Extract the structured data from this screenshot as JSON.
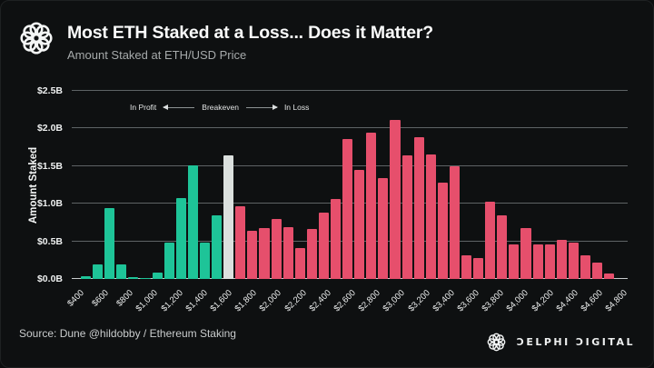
{
  "header": {
    "title": "Most ETH Staked at a Loss... Does it Matter?",
    "subtitle": "Amount Staked at ETH/USD Price"
  },
  "icons": {
    "logo": "delphi-knot-ring"
  },
  "chart_data": {
    "type": "bar",
    "title": "Amount Staked at ETH/USD Price",
    "xlabel": "",
    "ylabel": "Amount Staked",
    "ylim": [
      0,
      2.5
    ],
    "grid": true,
    "legend": "none",
    "y_ticks": [
      "$0.0B",
      "$0.5B",
      "$1.0B",
      "$1.5B",
      "$2.0B",
      "$2.5B"
    ],
    "x_tick_labels": [
      "$400",
      "$600",
      "$800",
      "$1,000",
      "$1,200",
      "$1,400",
      "$1,600",
      "$1,800",
      "$2,000",
      "$2,200",
      "$2,400",
      "$2,600",
      "$2,800",
      "$3,000",
      "$3,200",
      "$3,400",
      "$3,600",
      "$3,800",
      "$4,000",
      "$4,200",
      "$4,400",
      "$4,600",
      "$4,800"
    ],
    "categories": [
      "$400",
      "$500",
      "$600",
      "$700",
      "$800",
      "$900",
      "$1,000",
      "$1,100",
      "$1,200",
      "$1,300",
      "$1,400",
      "$1,500",
      "$1,600",
      "$1,700",
      "$1,800",
      "$1,900",
      "$2,000",
      "$2,100",
      "$2,200",
      "$2,300",
      "$2,400",
      "$2,500",
      "$2,600",
      "$2,700",
      "$2,800",
      "$2,900",
      "$3,000",
      "$3,100",
      "$3,200",
      "$3,300",
      "$3,400",
      "$3,500",
      "$3,600",
      "$3,700",
      "$3,800",
      "$3,900",
      "$4,000",
      "$4,100",
      "$4,200",
      "$4,300",
      "$4,400",
      "$4,500",
      "$4,600",
      "$4,700",
      "$4,800"
    ],
    "values": [
      0.04,
      0.19,
      0.94,
      0.19,
      0.03,
      0.01,
      0.08,
      0.48,
      1.07,
      1.51,
      0.48,
      0.85,
      1.64,
      0.97,
      0.64,
      0.68,
      0.8,
      0.69,
      0.41,
      0.67,
      0.88,
      1.06,
      1.86,
      1.45,
      1.95,
      1.34,
      2.11,
      1.64,
      1.88,
      1.65,
      1.28,
      1.5,
      0.31,
      0.28,
      1.03,
      0.84,
      0.46,
      0.68,
      0.46,
      0.46,
      0.52,
      0.48,
      0.31,
      0.22,
      0.07
    ],
    "breakeven_index": 12,
    "series_colors": {
      "in_profit": "#1ec498",
      "breakeven": "#dbe0de",
      "in_loss": "#e64f6c"
    },
    "annotation": {
      "left": "In Profit",
      "center": "Breakeven",
      "right": "In Loss"
    }
  },
  "footer": {
    "source": "Source: Dune @hildobby / Ethereum Staking",
    "brand": "ƆELPHI ƆIGITAL"
  }
}
